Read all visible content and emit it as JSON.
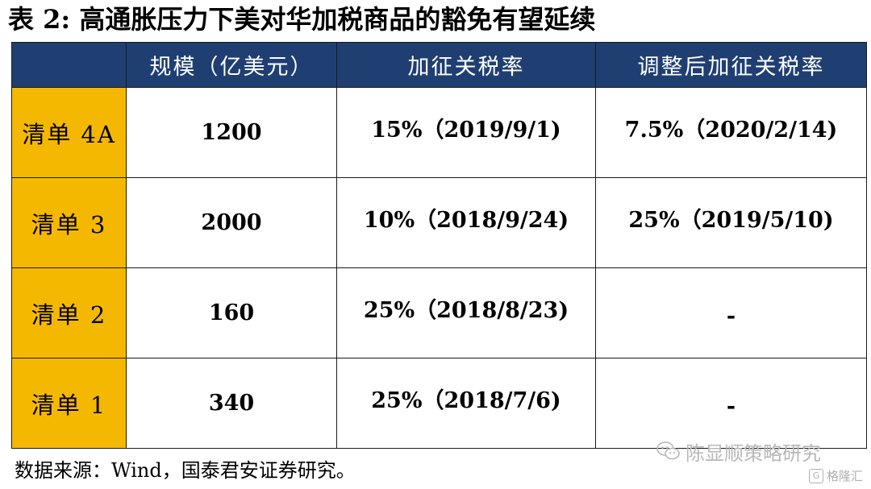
{
  "title": "表 2:  高通胀压力下美对华加税商品的豁免有望延续",
  "table": {
    "headers": [
      "",
      "规模（亿美元）",
      "加征关税率",
      "调整后加征关税率"
    ],
    "rows": [
      {
        "list": "清单 4A",
        "scale": "1200",
        "rate": "15%（2019/9/1)",
        "adjusted": "7.5%（2020/2/14)"
      },
      {
        "list": "清单 3",
        "scale": "2000",
        "rate": "10%（2018/9/24)",
        "adjusted": "25%（2019/5/10)"
      },
      {
        "list": "清单 2",
        "scale": "160",
        "rate": "25%（2018/8/23)",
        "adjusted": "-"
      },
      {
        "list": "清单 1",
        "scale": "340",
        "rate": "25%（2018/7/6)",
        "adjusted": "-"
      }
    ]
  },
  "source": "数据来源：Wind，国泰君安证券研究。",
  "watermark": {
    "text": "陈显顺策略研究",
    "icon": "wechat-icon"
  },
  "brand": {
    "text": "格隆汇",
    "icon": "brand-logo-icon"
  },
  "colors": {
    "header_bg": "#1f3f73",
    "rowhead_bg": "#f5b800"
  }
}
